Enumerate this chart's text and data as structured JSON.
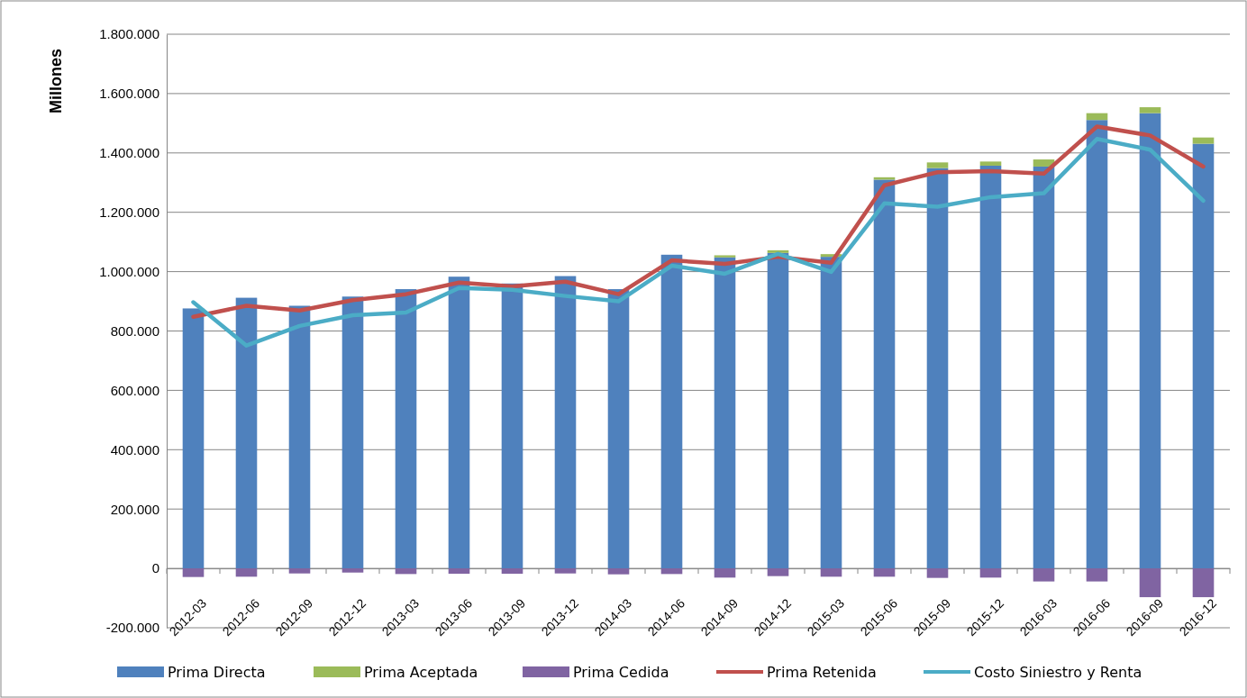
{
  "chart_data": {
    "type": "bar",
    "stacked": true,
    "ylabel": "Millones",
    "categories": [
      "2012-03",
      "2012-06",
      "2012-09",
      "2012-12",
      "2013-03",
      "2013-06",
      "2013-09",
      "2013-12",
      "2014-03",
      "2014-06",
      "2014-09",
      "2014-12",
      "2015-03",
      "2015-06",
      "2015-09",
      "2015-12",
      "2016-03",
      "2016-06",
      "2016-09",
      "2016-12"
    ],
    "series": [
      {
        "name": "Prima Directa",
        "color": "#4f81bd",
        "values": [
          876000,
          912000,
          885000,
          916000,
          941000,
          983000,
          960000,
          985000,
          941000,
          1057000,
          1048000,
          1063000,
          1050000,
          1310000,
          1349000,
          1357000,
          1354000,
          1511000,
          1534000,
          1431000
        ]
      },
      {
        "name": "Prima Aceptada",
        "color": "#9bbb59",
        "values": [
          null,
          null,
          null,
          null,
          null,
          null,
          null,
          null,
          null,
          null,
          7000,
          9000,
          9000,
          8000,
          19000,
          14000,
          24000,
          23000,
          20000,
          21000
        ]
      },
      {
        "name": "Prima Cedida",
        "color": "#8064a2",
        "values": [
          -29000,
          -28000,
          -17000,
          -14000,
          -19000,
          -18000,
          -18000,
          -17000,
          -20000,
          -19000,
          -31000,
          -26000,
          -28000,
          -28000,
          -32000,
          -31000,
          -44000,
          -44000,
          -97000,
          -97000
        ]
      },
      {
        "name": "Prima Retenida",
        "type": "line",
        "color": "#c0504d",
        "values": [
          848000,
          885000,
          869000,
          904000,
          924000,
          963000,
          950000,
          966000,
          924000,
          1038000,
          1026000,
          1050000,
          1030000,
          1291000,
          1335000,
          1339000,
          1330000,
          1489000,
          1459000,
          1354000
        ]
      },
      {
        "name": "Costo Siniestro y Renta",
        "type": "line",
        "color": "#4bacc6",
        "values": [
          897000,
          751000,
          817000,
          853000,
          862000,
          945000,
          939000,
          918000,
          900000,
          1020000,
          993000,
          1060000,
          999000,
          1230000,
          1219000,
          1251000,
          1264000,
          1447000,
          1411000,
          1239000
        ]
      }
    ],
    "ylim": [
      -200000,
      1800000
    ],
    "yticks": [
      {
        "value": -200000,
        "label": "-200.000"
      },
      {
        "value": 0,
        "label": "0"
      },
      {
        "value": 200000,
        "label": "200.000"
      },
      {
        "value": 400000,
        "label": "400.000"
      },
      {
        "value": 600000,
        "label": "600.000"
      },
      {
        "value": 800000,
        "label": "800.000"
      },
      {
        "value": 1000000,
        "label": "1.000.000"
      },
      {
        "value": 1200000,
        "label": "1.200.000"
      },
      {
        "value": 1400000,
        "label": "1.400.000"
      },
      {
        "value": 1600000,
        "label": "1.600.000"
      },
      {
        "value": 1800000,
        "label": "1.800.000"
      }
    ],
    "grid": "y",
    "legend": "bottom"
  }
}
